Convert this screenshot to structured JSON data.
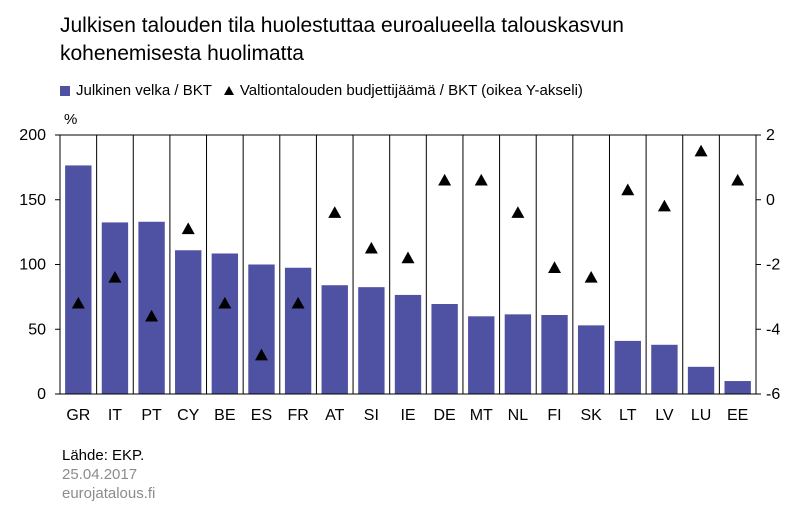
{
  "title_line1": "Julkisen talouden tila huolestuttaa euroalueella talouskasvun",
  "title_line2": "kohenemisesta huolimatta",
  "legend": {
    "bar_label": "Julkinen velka / BKT",
    "marker_label": "Valtiontalouden budjettijäämä / BKT (oikea Y-akseli)"
  },
  "left_unit": "%",
  "source": {
    "line1": "Lähde: EKP.",
    "line2": "25.04.2017",
    "line3": "eurojatalous.fi"
  },
  "colors": {
    "bar": "#4f52a3",
    "marker": "#000000",
    "grid": "#000000"
  },
  "chart_data": {
    "type": "bar",
    "categories": [
      "GR",
      "IT",
      "PT",
      "CY",
      "BE",
      "ES",
      "FR",
      "AT",
      "SI",
      "IE",
      "DE",
      "MT",
      "NL",
      "FI",
      "SK",
      "LT",
      "LV",
      "LU",
      "EE"
    ],
    "series": [
      {
        "name": "Julkinen velka / BKT",
        "type": "bar",
        "axis": "left",
        "values": [
          176.5,
          132.5,
          133,
          111,
          108.5,
          100,
          97.5,
          84,
          82.5,
          76.5,
          69.5,
          60,
          61.5,
          61,
          53,
          41,
          38,
          21,
          10
        ]
      },
      {
        "name": "Valtiontalouden budjettijäämä / BKT (oikea Y-akseli)",
        "type": "marker",
        "axis": "right",
        "values": [
          -3.2,
          -2.4,
          -3.6,
          -0.9,
          -3.2,
          -4.8,
          -3.2,
          -0.4,
          -1.5,
          -1.8,
          0.6,
          0.6,
          -0.4,
          -2.1,
          -2.4,
          0.3,
          -0.2,
          1.5,
          0.6
        ]
      }
    ],
    "y_left": {
      "min": 0,
      "max": 200,
      "ticks": [
        0,
        50,
        100,
        150,
        200
      ]
    },
    "y_right": {
      "min": -6,
      "max": 2,
      "ticks": [
        -6,
        -4,
        -2,
        0,
        2
      ]
    },
    "grid": "vertical category separators"
  }
}
